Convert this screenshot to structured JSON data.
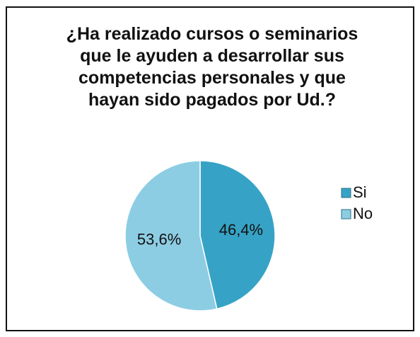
{
  "chart_data": {
    "type": "pie",
    "title": "¿Ha realizado cursos o seminarios que le ayuden a desarrollar sus competencias personales y que hayan sido pagados por Ud.?",
    "categories": [
      "Si",
      "No"
    ],
    "values": [
      46.4,
      53.6
    ],
    "value_labels": [
      "46,4%",
      "53,6%"
    ],
    "colors": [
      "#36a3c6",
      "#8dcde4"
    ],
    "legend": "right"
  }
}
